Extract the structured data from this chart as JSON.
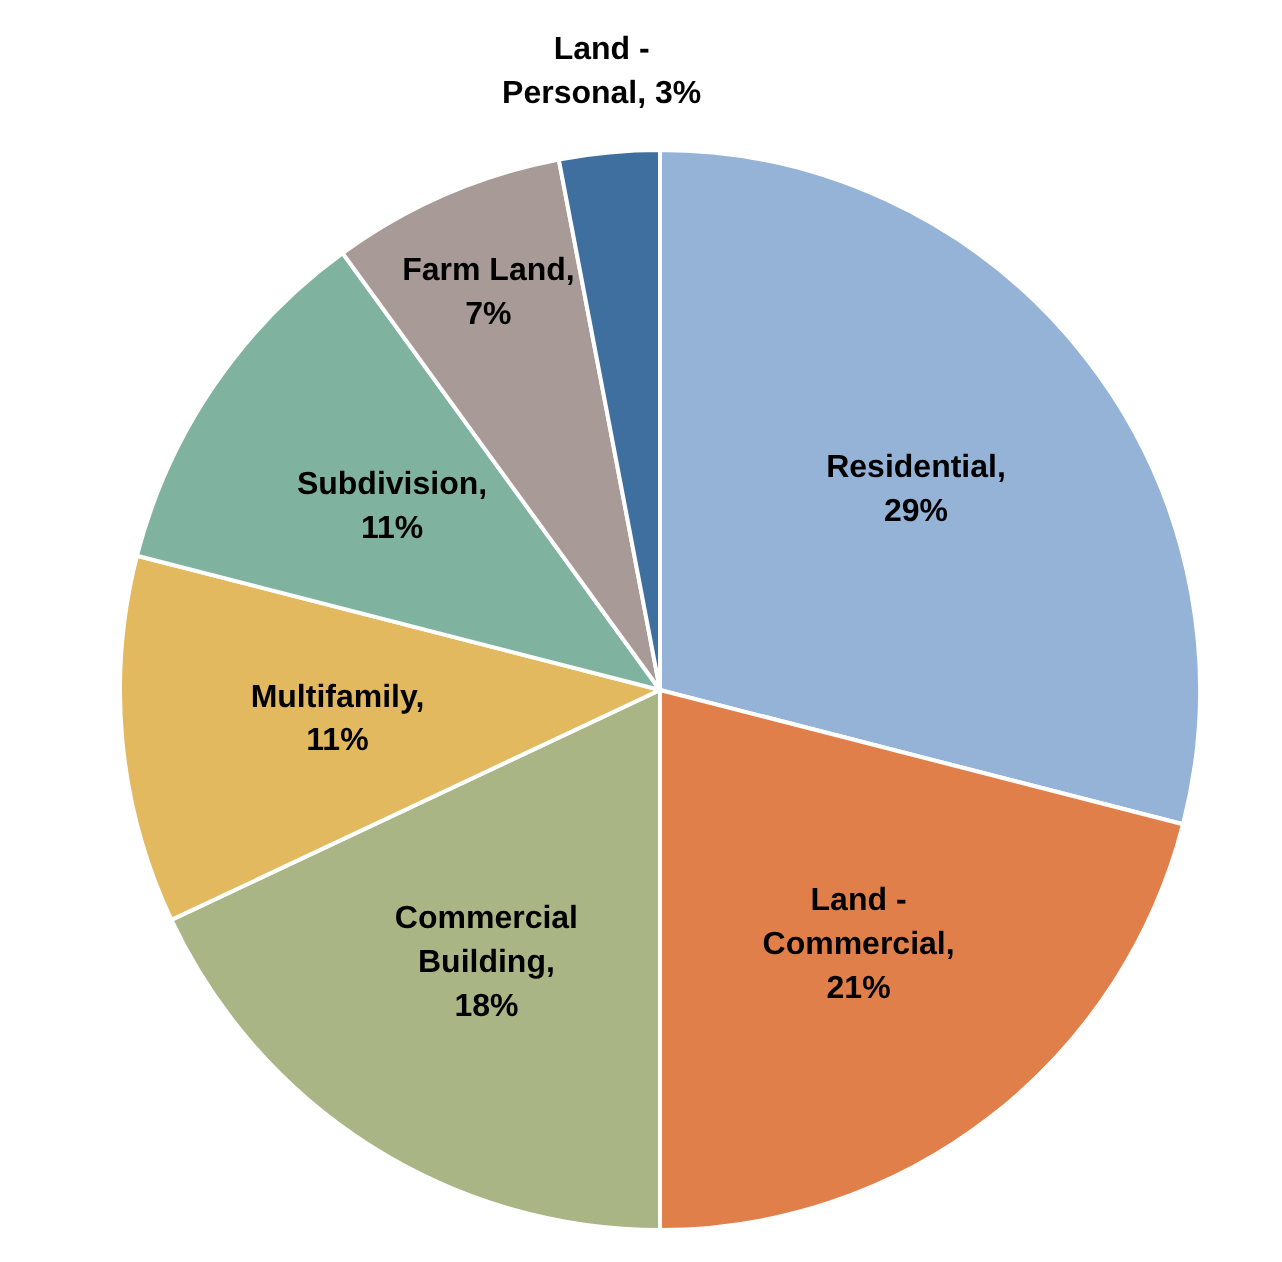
{
  "chart_data": {
    "type": "pie",
    "categories": [
      "Residential",
      "Land - Commercial",
      "Commercial Building",
      "Multifamily",
      "Subdivision",
      "Farm Land",
      "Land - Personal"
    ],
    "values": [
      29,
      21,
      18,
      11,
      11,
      7,
      3
    ],
    "value_labels": [
      ", 29%",
      ", 21%",
      ", 18%",
      ", 11%",
      ", 11%",
      ", 7%",
      ", 3%"
    ],
    "colors": [
      "#95b3d7",
      "#e07f4a",
      "#aab585",
      "#e3b95f",
      "#7fb3a0",
      "#a89a96",
      "#3e6f9e"
    ]
  }
}
